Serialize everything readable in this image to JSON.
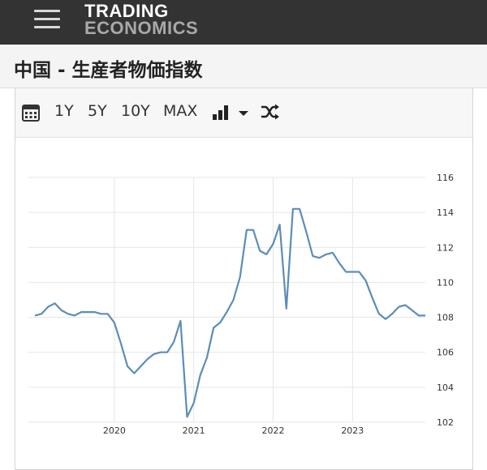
{
  "header": {
    "logo_line1": "TRADING",
    "logo_line2": "ECONOMICS"
  },
  "page": {
    "title": "中国 - 生産者物価指数"
  },
  "toolbar": {
    "ranges": [
      "1Y",
      "5Y",
      "10Y",
      "MAX"
    ],
    "calendar_icon": "calendar-icon",
    "chart_type_icon": "bar-chart-icon",
    "dropdown_icon": "caret-down-icon",
    "shuffle_icon": "shuffle-icon"
  },
  "colors": {
    "line": "#5b8db8",
    "header_bg": "#333333",
    "grid": "#e6e6e6"
  },
  "chart_data": {
    "type": "line",
    "title": "",
    "xlabel": "",
    "ylabel": "",
    "ylim": [
      102,
      116
    ],
    "yticks": [
      102,
      104,
      106,
      108,
      110,
      112,
      114,
      116
    ],
    "xtick_labels": [
      "2020",
      "2021",
      "2022",
      "2023"
    ],
    "grid": true,
    "axis_side": "right",
    "series": [
      {
        "x": [
          "2019-01",
          "2019-02",
          "2019-03",
          "2019-04",
          "2019-05",
          "2019-06",
          "2019-07",
          "2019-08",
          "2019-09",
          "2019-10",
          "2019-11",
          "2019-12",
          "2020-01",
          "2020-02",
          "2020-03",
          "2020-04",
          "2020-05",
          "2020-06",
          "2020-07",
          "2020-08",
          "2020-09",
          "2020-10",
          "2020-11",
          "2020-12",
          "2021-01",
          "2021-02",
          "2021-03",
          "2021-04",
          "2021-05",
          "2021-06",
          "2021-07",
          "2021-08",
          "2021-09",
          "2021-10",
          "2021-11",
          "2021-12",
          "2022-01",
          "2022-02",
          "2022-03",
          "2022-04",
          "2022-05",
          "2022-06",
          "2022-07",
          "2022-08",
          "2022-09",
          "2022-10",
          "2022-11",
          "2022-12",
          "2023-01",
          "2023-02",
          "2023-03",
          "2023-04",
          "2023-05",
          "2023-06",
          "2023-07",
          "2023-08",
          "2023-09",
          "2023-10",
          "2023-11",
          "2023-12"
        ],
        "values": [
          108.1,
          108.2,
          108.6,
          108.8,
          108.4,
          108.2,
          108.1,
          108.3,
          108.3,
          108.3,
          108.2,
          108.2,
          107.7,
          106.5,
          105.2,
          104.8,
          105.2,
          105.6,
          105.9,
          106.0,
          106.0,
          106.6,
          107.8,
          102.3,
          103.1,
          104.7,
          105.7,
          107.4,
          107.7,
          108.3,
          109.0,
          110.3,
          113.0,
          113.0,
          111.8,
          111.6,
          112.2,
          113.3,
          108.5,
          114.2,
          114.2,
          112.9,
          111.5,
          111.4,
          111.6,
          111.7,
          111.1,
          110.6,
          110.6,
          110.6,
          110.1,
          109.1,
          108.2,
          107.9,
          108.2,
          108.6,
          108.7,
          108.4,
          108.1,
          108.1
        ]
      }
    ]
  }
}
